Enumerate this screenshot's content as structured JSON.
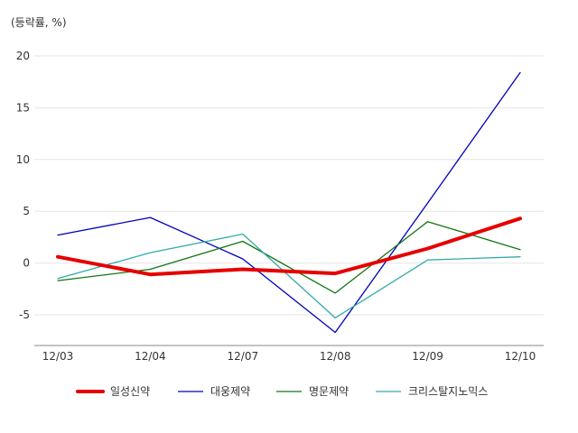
{
  "chart_data": {
    "type": "line",
    "unit_label": "(등락률, %)",
    "categories": [
      "12/03",
      "12/04",
      "12/07",
      "12/08",
      "12/09",
      "12/10"
    ],
    "ylim": [
      -8,
      20
    ],
    "yticks": [
      -5,
      0,
      5,
      10,
      15,
      20
    ],
    "ytick_labels": [
      "-5",
      "0",
      "5",
      "10",
      "15",
      "20"
    ],
    "grid": true,
    "legend_position": "bottom",
    "series": [
      {
        "name": "일성신약",
        "color": "#e60000",
        "values": [
          0.6,
          -1.1,
          -0.6,
          -1.0,
          1.4,
          4.3
        ]
      },
      {
        "name": "대웅제약",
        "color": "#0000bb",
        "values": [
          2.7,
          4.4,
          0.4,
          -6.7,
          5.8,
          18.4
        ]
      },
      {
        "name": "명문제약",
        "color": "#117711",
        "values": [
          -1.7,
          -0.6,
          2.1,
          -2.9,
          4.0,
          1.3
        ]
      },
      {
        "name": "크리스탈지노믹스",
        "color": "#33aaaa",
        "values": [
          -1.5,
          1.0,
          2.8,
          -5.3,
          0.3,
          0.6
        ]
      }
    ]
  }
}
